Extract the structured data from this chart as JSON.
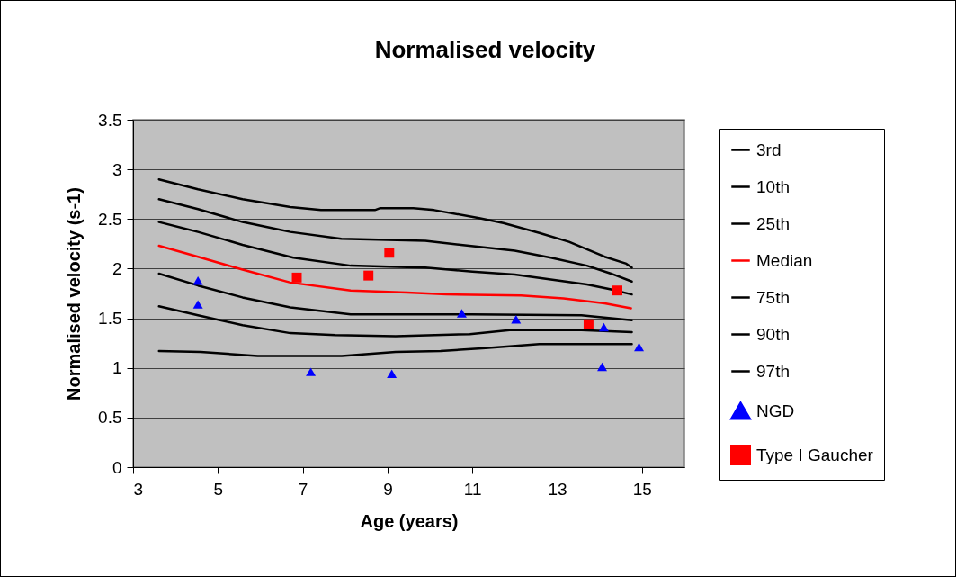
{
  "chart_data": {
    "type": "line",
    "title": "Normalised velocity",
    "xlabel": "Age (years)",
    "ylabel": "Normalised velocity (s-1)",
    "xlim": [
      3,
      16
    ],
    "xticks": [
      3,
      5,
      7,
      9,
      11,
      13,
      15
    ],
    "ylim": [
      0,
      3.5
    ],
    "yticks": [
      0,
      0.5,
      1,
      1.5,
      2,
      2.5,
      3,
      3.5
    ],
    "grid": "y",
    "legend": "right",
    "series": [
      {
        "name": "3rd",
        "color": "#000000",
        "marker": "none",
        "x": [
          3.61,
          4.59,
          5.94,
          7.92,
          9.19,
          10.25,
          11.31,
          12.58,
          14.76
        ],
        "values": [
          1.17,
          1.16,
          1.12,
          1.12,
          1.16,
          1.17,
          1.2,
          1.24,
          1.24
        ]
      },
      {
        "name": "10th",
        "color": "#000000",
        "marker": "none",
        "x": [
          3.61,
          4.53,
          5.58,
          6.71,
          7.77,
          9.19,
          10.94,
          11.88,
          13.57,
          14.76
        ],
        "values": [
          1.62,
          1.53,
          1.43,
          1.35,
          1.33,
          1.32,
          1.34,
          1.38,
          1.38,
          1.36
        ]
      },
      {
        "name": "25th",
        "color": "#000000",
        "marker": "none",
        "x": [
          3.61,
          4.53,
          5.58,
          6.71,
          8.13,
          9.55,
          11.0,
          13.57,
          14.27,
          14.76
        ],
        "values": [
          1.95,
          1.83,
          1.71,
          1.61,
          1.54,
          1.54,
          1.54,
          1.53,
          1.5,
          1.48
        ]
      },
      {
        "name": "Median",
        "color": "#ff0000",
        "marker": "none",
        "x": [
          3.61,
          4.53,
          5.58,
          6.71,
          8.13,
          9.46,
          10.39,
          12.15,
          13.15,
          14.12,
          14.74
        ],
        "values": [
          2.23,
          2.12,
          1.99,
          1.86,
          1.78,
          1.76,
          1.74,
          1.73,
          1.7,
          1.65,
          1.6
        ]
      },
      {
        "name": "75th",
        "color": "#000000",
        "marker": "none",
        "x": [
          3.61,
          4.53,
          5.58,
          6.78,
          8.13,
          9.04,
          9.89,
          11.0,
          12.0,
          12.85,
          13.7,
          14.27,
          14.76
        ],
        "values": [
          2.47,
          2.37,
          2.24,
          2.11,
          2.03,
          2.02,
          2.01,
          1.97,
          1.94,
          1.89,
          1.84,
          1.79,
          1.74
        ]
      },
      {
        "name": "90th",
        "color": "#000000",
        "marker": "none",
        "x": [
          3.61,
          4.53,
          5.58,
          6.71,
          7.91,
          9.0,
          9.89,
          10.73,
          12.0,
          12.85,
          13.7,
          14.27,
          14.76
        ],
        "values": [
          2.7,
          2.6,
          2.47,
          2.37,
          2.3,
          2.29,
          2.28,
          2.24,
          2.18,
          2.11,
          2.03,
          1.95,
          1.87
        ]
      },
      {
        "name": "97th",
        "color": "#000000",
        "marker": "none",
        "x": [
          3.61,
          4.53,
          5.58,
          6.71,
          7.43,
          8.7,
          8.83,
          9.61,
          10.1,
          11.16,
          11.73,
          12.58,
          13.28,
          14.12,
          14.63,
          14.76
        ],
        "values": [
          2.9,
          2.8,
          2.7,
          2.62,
          2.59,
          2.59,
          2.61,
          2.61,
          2.59,
          2.51,
          2.46,
          2.36,
          2.27,
          2.12,
          2.05,
          2.01
        ]
      },
      {
        "name": "NGD",
        "type": "scatter",
        "color": "#0000ff",
        "marker": "triangle",
        "x": [
          4.53,
          4.53,
          7.19,
          9.1,
          10.75,
          12.03,
          14.1,
          14.06,
          14.93
        ],
        "values": [
          1.88,
          1.64,
          0.96,
          0.94,
          1.55,
          1.49,
          1.41,
          1.01,
          1.21
        ]
      },
      {
        "name": "Type I Gaucher",
        "type": "scatter",
        "color": "#ff0000",
        "marker": "square",
        "x": [
          6.86,
          8.55,
          9.04,
          13.74,
          14.42
        ],
        "values": [
          1.91,
          1.93,
          2.16,
          1.44,
          1.78
        ]
      }
    ]
  }
}
